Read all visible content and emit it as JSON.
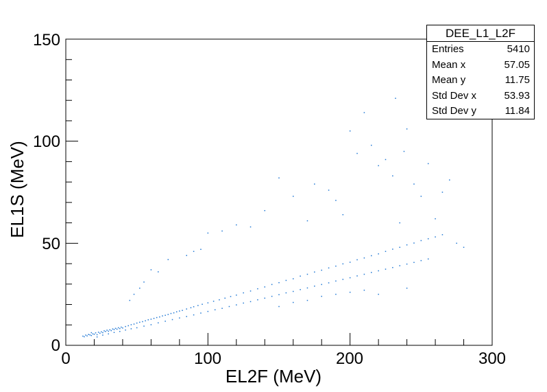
{
  "chart_data": {
    "type": "scatter",
    "title": "",
    "xlabel": "EL2F (MeV)",
    "ylabel": "EL1S (MeV)",
    "xlim": [
      0,
      300
    ],
    "ylim": [
      0,
      150
    ],
    "x_ticks": [
      "0",
      "100",
      "200",
      "300"
    ],
    "y_ticks": [
      "0",
      "50",
      "100",
      "150"
    ],
    "marker_color": "#1f77d4",
    "series": [
      {
        "points": [
          [
            12,
            4.5
          ],
          [
            13,
            4.2
          ],
          [
            14,
            5.0
          ],
          [
            15,
            4.6
          ],
          [
            16,
            5.3
          ],
          [
            17,
            5.1
          ],
          [
            18,
            4.8
          ],
          [
            19,
            5.6
          ],
          [
            20,
            5.4
          ],
          [
            21,
            6.1
          ],
          [
            22,
            5.2
          ],
          [
            23,
            6.4
          ],
          [
            24,
            5.9
          ],
          [
            25,
            6.6
          ],
          [
            26,
            6.2
          ],
          [
            27,
            7.1
          ],
          [
            28,
            6.8
          ],
          [
            29,
            7.4
          ],
          [
            30,
            6.9
          ],
          [
            31,
            7.6
          ],
          [
            32,
            7.2
          ],
          [
            33,
            8.0
          ],
          [
            34,
            7.7
          ],
          [
            35,
            8.3
          ],
          [
            36,
            7.9
          ],
          [
            37,
            8.6
          ],
          [
            38,
            8.2
          ],
          [
            39,
            8.9
          ],
          [
            40,
            8.5
          ],
          [
            42,
            9.2
          ],
          [
            44,
            9.6
          ],
          [
            46,
            10.1
          ],
          [
            48,
            10.4
          ],
          [
            50,
            10.9
          ],
          [
            52,
            11.3
          ],
          [
            54,
            11.6
          ],
          [
            56,
            12.0
          ],
          [
            58,
            12.5
          ],
          [
            60,
            12.8
          ],
          [
            62,
            13.2
          ],
          [
            64,
            13.6
          ],
          [
            66,
            13.9
          ],
          [
            68,
            14.4
          ],
          [
            70,
            14.7
          ],
          [
            72,
            15.1
          ],
          [
            74,
            15.6
          ],
          [
            76,
            15.9
          ],
          [
            78,
            16.4
          ],
          [
            80,
            16.8
          ],
          [
            82,
            17.1
          ],
          [
            85,
            17.8
          ],
          [
            88,
            18.4
          ],
          [
            90,
            18.9
          ],
          [
            93,
            19.5
          ],
          [
            96,
            20.1
          ],
          [
            100,
            20.8
          ],
          [
            104,
            21.6
          ],
          [
            108,
            22.3
          ],
          [
            112,
            23.1
          ],
          [
            116,
            23.9
          ],
          [
            120,
            24.6
          ],
          [
            125,
            25.7
          ],
          [
            130,
            26.6
          ],
          [
            135,
            27.7
          ],
          [
            140,
            28.6
          ],
          [
            145,
            29.8
          ],
          [
            150,
            30.7
          ],
          [
            155,
            31.8
          ],
          [
            160,
            32.6
          ],
          [
            165,
            33.9
          ],
          [
            170,
            34.8
          ],
          [
            175,
            35.9
          ],
          [
            180,
            36.8
          ],
          [
            185,
            37.9
          ],
          [
            190,
            38.8
          ],
          [
            195,
            39.9
          ],
          [
            200,
            40.7
          ],
          [
            205,
            41.9
          ],
          [
            210,
            42.8
          ],
          [
            215,
            43.9
          ],
          [
            220,
            44.8
          ],
          [
            225,
            46.0
          ],
          [
            230,
            47.1
          ],
          [
            235,
            48.0
          ],
          [
            240,
            49.2
          ],
          [
            245,
            50.1
          ],
          [
            250,
            51.3
          ],
          [
            255,
            52.2
          ],
          [
            260,
            53.1
          ],
          [
            265,
            54.2
          ],
          [
            18,
            6.2
          ],
          [
            22,
            4.1
          ],
          [
            26,
            5.0
          ],
          [
            30,
            5.6
          ],
          [
            34,
            6.3
          ],
          [
            38,
            6.8
          ],
          [
            42,
            7.5
          ],
          [
            46,
            8.1
          ],
          [
            50,
            8.6
          ],
          [
            55,
            9.4
          ],
          [
            60,
            10.1
          ],
          [
            65,
            11.0
          ],
          [
            70,
            11.8
          ],
          [
            75,
            12.6
          ],
          [
            80,
            13.4
          ],
          [
            85,
            14.1
          ],
          [
            90,
            14.9
          ],
          [
            95,
            15.8
          ],
          [
            100,
            16.6
          ],
          [
            105,
            17.4
          ],
          [
            110,
            18.1
          ],
          [
            115,
            19.0
          ],
          [
            120,
            19.8
          ],
          [
            125,
            20.7
          ],
          [
            130,
            21.4
          ],
          [
            135,
            22.3
          ],
          [
            140,
            23.1
          ],
          [
            145,
            24.0
          ],
          [
            150,
            24.8
          ],
          [
            155,
            25.7
          ],
          [
            160,
            26.4
          ],
          [
            165,
            27.3
          ],
          [
            170,
            28.1
          ],
          [
            175,
            29.0
          ],
          [
            180,
            29.8
          ],
          [
            185,
            30.6
          ],
          [
            190,
            31.5
          ],
          [
            195,
            32.3
          ],
          [
            200,
            33.1
          ],
          [
            205,
            34.0
          ],
          [
            210,
            34.8
          ],
          [
            215,
            35.7
          ],
          [
            220,
            36.5
          ],
          [
            225,
            37.3
          ],
          [
            230,
            38.1
          ],
          [
            235,
            39.0
          ],
          [
            240,
            39.8
          ],
          [
            245,
            40.6
          ],
          [
            250,
            41.5
          ],
          [
            255,
            42.3
          ],
          [
            150,
            82
          ],
          [
            160,
            73
          ],
          [
            170,
            61
          ],
          [
            175,
            79
          ],
          [
            185,
            76
          ],
          [
            190,
            71
          ],
          [
            195,
            64
          ],
          [
            200,
            105
          ],
          [
            205,
            94
          ],
          [
            210,
            114
          ],
          [
            215,
            98
          ],
          [
            220,
            88
          ],
          [
            225,
            91
          ],
          [
            230,
            83
          ],
          [
            232,
            121
          ],
          [
            238,
            95
          ],
          [
            240,
            106
          ],
          [
            245,
            79
          ],
          [
            250,
            73
          ],
          [
            255,
            89
          ],
          [
            260,
            62
          ],
          [
            265,
            75
          ],
          [
            270,
            81
          ],
          [
            275,
            50
          ],
          [
            280,
            48
          ],
          [
            130,
            58
          ],
          [
            140,
            66
          ],
          [
            120,
            59
          ],
          [
            110,
            56
          ],
          [
            100,
            55
          ],
          [
            95,
            47
          ],
          [
            90,
            46
          ],
          [
            85,
            44
          ],
          [
            72,
            42
          ],
          [
            65,
            36
          ],
          [
            60,
            37
          ],
          [
            55,
            31
          ],
          [
            52,
            28
          ],
          [
            48,
            25
          ],
          [
            45,
            22
          ],
          [
            235,
            60
          ],
          [
            240,
            28
          ],
          [
            220,
            25
          ],
          [
            210,
            27
          ],
          [
            200,
            26
          ],
          [
            190,
            25
          ],
          [
            180,
            24
          ],
          [
            170,
            22
          ],
          [
            160,
            21
          ],
          [
            150,
            19
          ]
        ]
      }
    ],
    "stats": {
      "title": "DEE_L1_L2F",
      "rows": [
        {
          "label": "Entries",
          "value": "5410"
        },
        {
          "label": "Mean x",
          "value": "57.05"
        },
        {
          "label": "Mean y",
          "value": "11.75"
        },
        {
          "label": "Std Dev x",
          "value": "53.93"
        },
        {
          "label": "Std Dev y",
          "value": "11.84"
        }
      ]
    }
  }
}
